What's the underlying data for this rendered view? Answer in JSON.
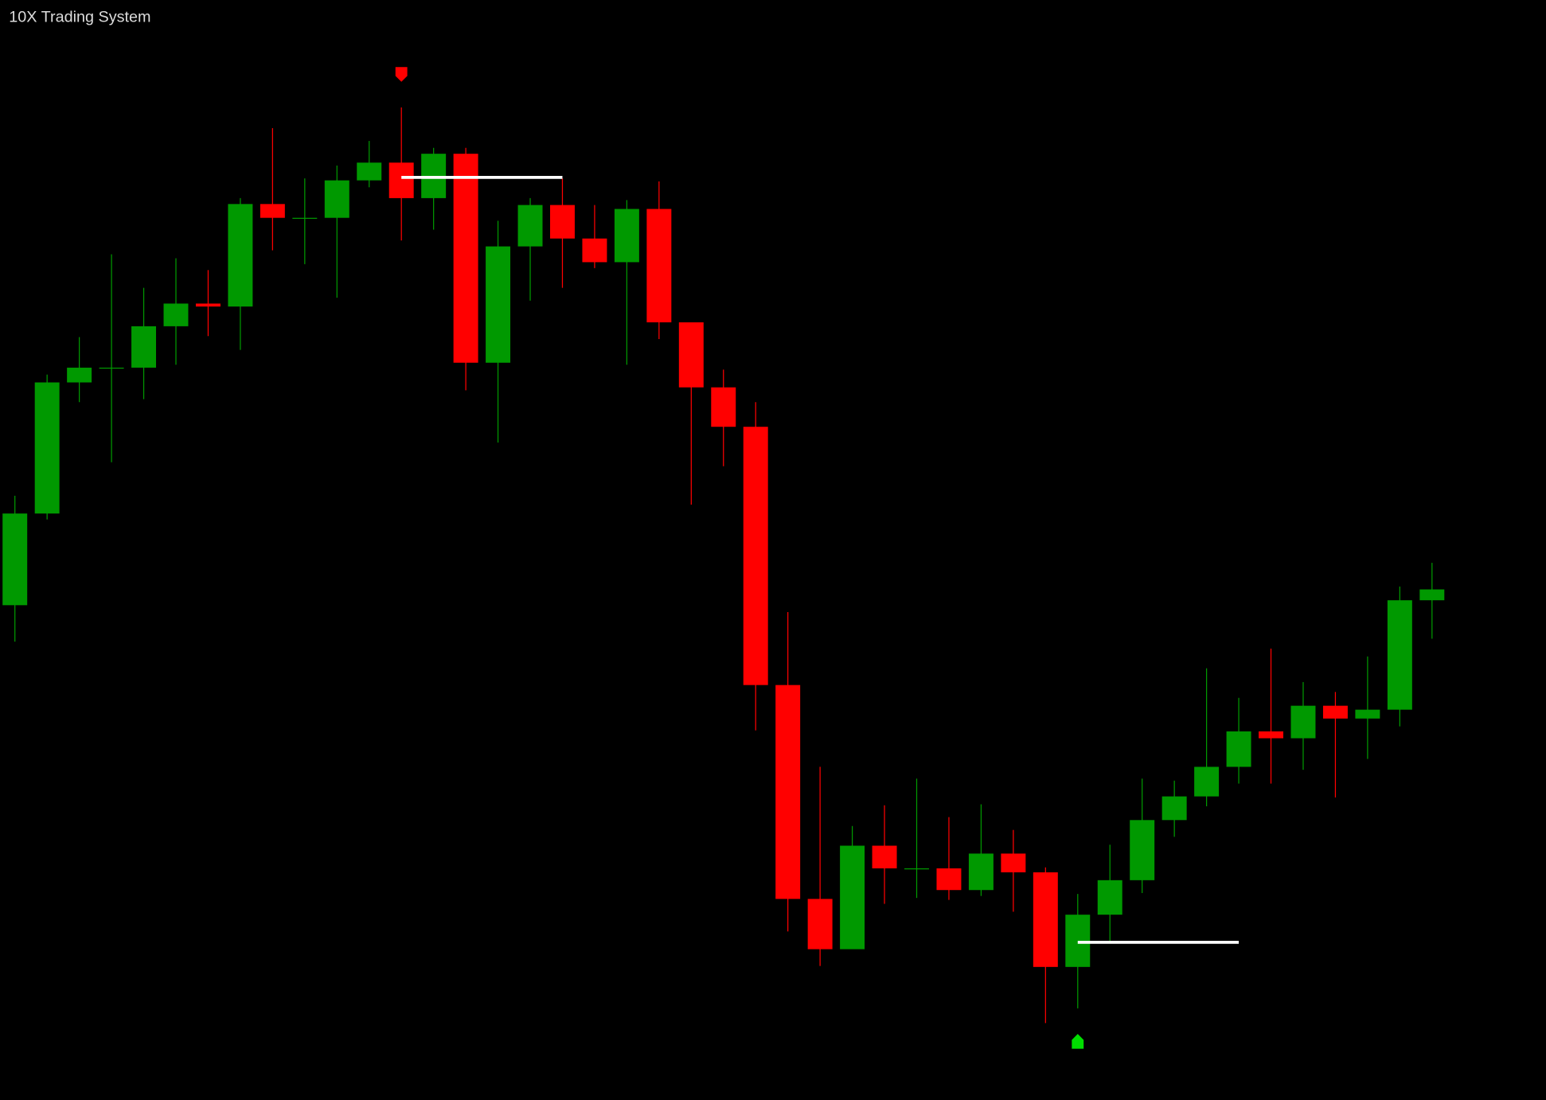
{
  "chart_data": {
    "type": "candlestick",
    "title": "10X Trading System",
    "categories": [
      null,
      null,
      null,
      null,
      null,
      null,
      null,
      null,
      null,
      null,
      null,
      null,
      null,
      null,
      null,
      null,
      null,
      null,
      null,
      null,
      null,
      null,
      null,
      null,
      null,
      null,
      null,
      null,
      null,
      null,
      null,
      null,
      null,
      null,
      null,
      null,
      null,
      null,
      null,
      null,
      null,
      null,
      null,
      null,
      null
    ],
    "open": [
      502,
      595,
      728,
      743,
      743,
      785,
      808,
      805,
      909,
      895,
      895,
      933,
      951,
      915,
      960,
      748,
      866,
      908,
      874,
      850,
      904,
      789,
      723,
      683,
      421,
      204,
      153,
      258,
      235,
      235,
      213,
      250,
      231,
      135,
      188,
      223,
      284,
      308,
      338,
      374,
      367,
      400,
      387,
      396,
      507
    ],
    "high": [
      613,
      736,
      774,
      858,
      824,
      854,
      842,
      915,
      986,
      935,
      948,
      973,
      1007,
      966,
      966,
      892,
      915,
      935,
      908,
      913,
      932,
      789,
      741,
      708,
      495,
      338,
      278,
      299,
      326,
      287,
      300,
      274,
      236,
      209,
      259,
      326,
      324,
      438,
      408,
      458,
      424,
      414,
      450,
      521,
      545
    ],
    "low": [
      465,
      589,
      708,
      647,
      711,
      746,
      775,
      761,
      862,
      848,
      814,
      926,
      872,
      883,
      720,
      667,
      811,
      824,
      844,
      746,
      772,
      604,
      643,
      375,
      171,
      136,
      153,
      199,
      205,
      203,
      207,
      191,
      78,
      93,
      161,
      210,
      267,
      298,
      321,
      321,
      335,
      307,
      346,
      379,
      468
    ],
    "close": [
      595,
      728,
      743,
      743,
      785,
      808,
      805,
      909,
      895,
      895,
      933,
      951,
      915,
      960,
      748,
      866,
      908,
      874,
      850,
      904,
      789,
      723,
      683,
      421,
      204,
      153,
      258,
      235,
      235,
      213,
      250,
      231,
      135,
      188,
      223,
      284,
      308,
      338,
      374,
      367,
      400,
      387,
      396,
      507,
      518
    ],
    "up_color": "#009900",
    "down_color": "#ff0000",
    "ylim": [
      0,
      1116
    ],
    "levels": [
      {
        "from": 12,
        "to": 17,
        "value": 936,
        "color": "#ffffff"
      },
      {
        "from": 33,
        "to": 38,
        "value": 160,
        "color": "#ffffff"
      }
    ],
    "signals": [
      {
        "index": 12,
        "side": "sell",
        "color": "#ff0000"
      },
      {
        "index": 33,
        "side": "buy",
        "color": "#00dd00"
      }
    ]
  }
}
